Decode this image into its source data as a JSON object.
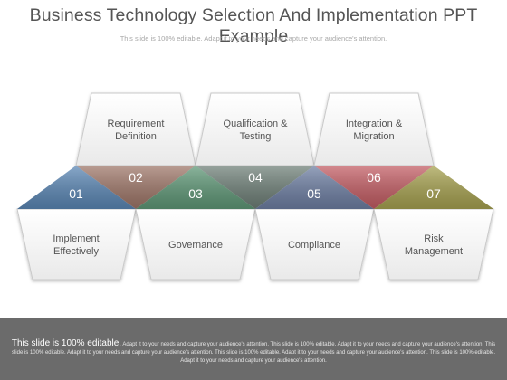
{
  "header": {
    "title": "Business Technology Selection And Implementation PPT Example",
    "subtitle": "This slide is 100% editable. Adapt it to your needs and capture your audience's attention."
  },
  "steps": [
    {
      "number": "01",
      "label": "Implement\nEffectively",
      "color": "#5b87b5"
    },
    {
      "number": "02",
      "label": "Requirement\nDefinition",
      "color": "#9e7668"
    },
    {
      "number": "03",
      "label": "Governance",
      "color": "#5f9877"
    },
    {
      "number": "04",
      "label": "Qualification &\nTesting",
      "color": "#6e7f77"
    },
    {
      "number": "05",
      "label": "Compliance",
      "color": "#6e7fa3"
    },
    {
      "number": "06",
      "label": "Integration &\nMigration",
      "color": "#c35c63"
    },
    {
      "number": "07",
      "label": "Risk\nManagement",
      "color": "#a7a250"
    }
  ],
  "footer": {
    "lead": "This slide is 100% editable.",
    "body": " Adapt it to your needs and capture your audience's attention. This slide is 100% editable. Adapt it to your needs and capture your audience's attention. This slide is 100% editable. Adapt it to your needs and capture your audience's attention. This slide is 100% editable. Adapt it to your needs and capture your audience's attention. This slide is 100% editable. Adapt it to your needs and capture your audience's attention."
  }
}
